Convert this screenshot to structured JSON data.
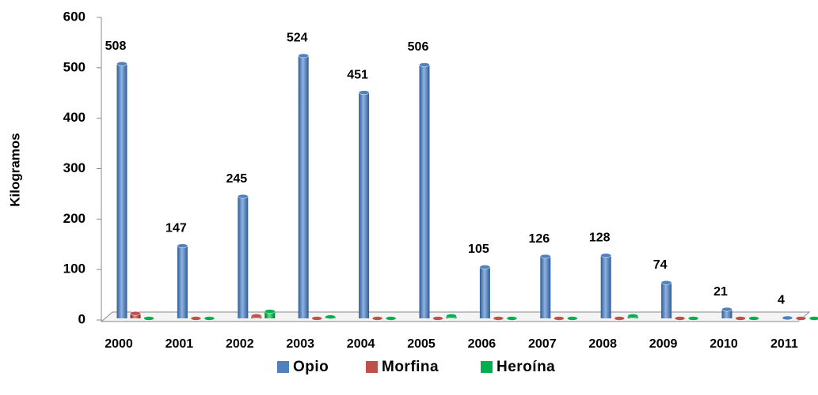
{
  "chart_data": {
    "type": "bar",
    "ylabel": "Kilogramos",
    "categories": [
      "2000",
      "2001",
      "2002",
      "2003",
      "2004",
      "2005",
      "2006",
      "2007",
      "2008",
      "2009",
      "2010",
      "2011"
    ],
    "series": [
      {
        "name": "Opio",
        "color": "#4f81bd",
        "values": [
          508,
          147,
          245,
          524,
          451,
          506,
          105,
          126,
          128,
          74,
          21,
          4
        ],
        "show_labels": true
      },
      {
        "name": "Morfina",
        "color": "#c0504d",
        "values": [
          13,
          1,
          8,
          1,
          1,
          1,
          1,
          1,
          1,
          1,
          1,
          1
        ]
      },
      {
        "name": "Heroína",
        "color": "#00b050",
        "values": [
          1,
          1,
          17,
          6,
          1,
          8,
          3,
          1,
          8,
          2,
          1,
          1
        ]
      }
    ],
    "ylim": [
      0,
      600
    ],
    "yticks": [
      0,
      100,
      200,
      300,
      400,
      500,
      600
    ],
    "legend": "bottom"
  }
}
